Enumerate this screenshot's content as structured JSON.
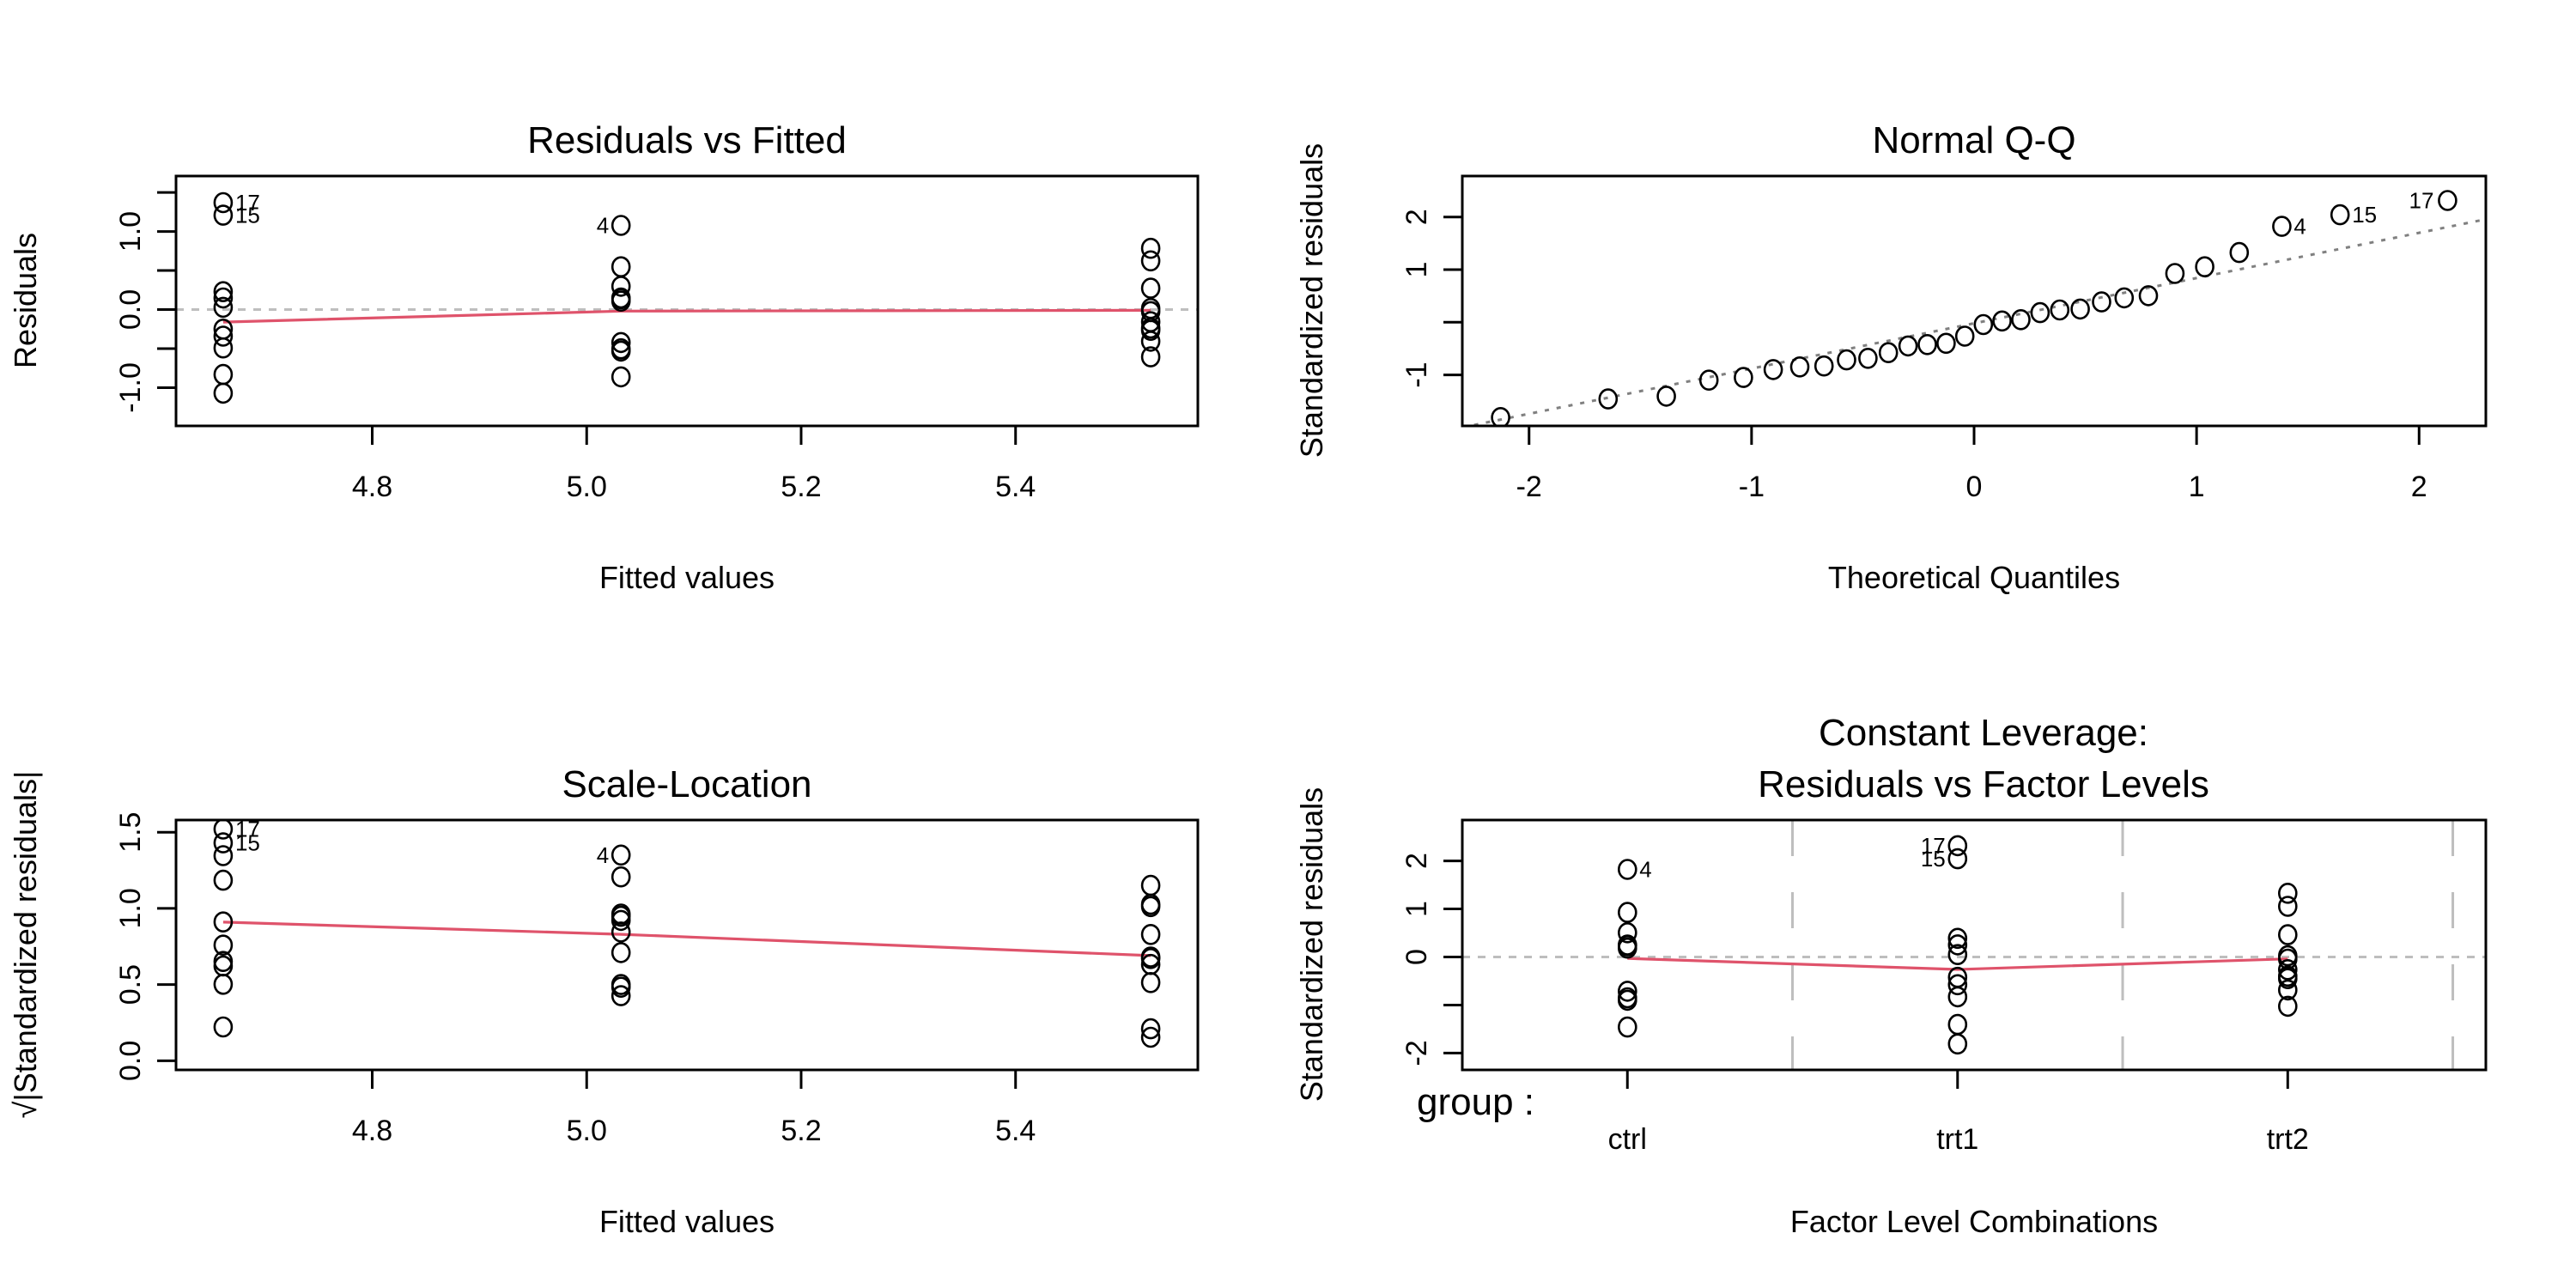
{
  "chart_data": [
    {
      "id": "residuals-vs-fitted",
      "type": "scatter",
      "title": "Residuals vs Fitted",
      "xlabel": "Fitted values",
      "ylabel": "Residuals",
      "xlim": [
        4.617,
        5.57
      ],
      "ylim": [
        -1.49,
        1.71
      ],
      "xticks": [
        4.8,
        5.0,
        5.2,
        5.4
      ],
      "xticklabels": [
        "4.8",
        "5.0",
        "5.2",
        "5.4"
      ],
      "yticks": [
        -1.0,
        -0.5,
        0.0,
        0.5,
        1.0,
        1.5
      ],
      "yticklabels": [
        "-1.0",
        "",
        "0.0",
        "",
        "1.0",
        ""
      ],
      "reference_line": {
        "y": 0,
        "style": "dotted",
        "color": "#BEBEBE"
      },
      "smooth_line": {
        "color": "#DF536B",
        "x": [
          4.661,
          5.032,
          5.526
        ],
        "y": [
          -0.16,
          -0.02,
          -0.01
        ]
      },
      "points": {
        "x": [
          5.032,
          5.032,
          5.032,
          5.032,
          5.032,
          5.032,
          5.032,
          5.032,
          5.032,
          5.032,
          4.661,
          4.661,
          4.661,
          4.661,
          4.661,
          4.661,
          4.661,
          4.661,
          4.661,
          4.661,
          5.526,
          5.526,
          5.526,
          5.526,
          5.526,
          5.526,
          5.526,
          5.526,
          5.526,
          5.526
        ],
        "y": [
          -0.862,
          0.548,
          0.148,
          1.078,
          -0.532,
          -0.422,
          0.138,
          -0.502,
          0.298,
          0.108,
          0.149,
          -0.491,
          -0.251,
          -1.071,
          1.209,
          -0.831,
          1.369,
          0.229,
          -0.341,
          0.029,
          0.784,
          -0.406,
          0.014,
          -0.026,
          -0.156,
          -0.236,
          -0.606,
          0.624,
          0.274,
          -0.266
        ]
      },
      "labeled_points": [
        {
          "label": "17",
          "index": 16
        },
        {
          "label": "15",
          "index": 14
        },
        {
          "label": "4",
          "index": 3
        }
      ]
    },
    {
      "id": "normal-qq",
      "type": "scatter",
      "title": "Normal Q-Q",
      "xlabel": "Theoretical Quantiles",
      "ylabel": "Standardized residuals",
      "xlim": [
        -2.3,
        2.3
      ],
      "ylim": [
        -1.97,
        2.78
      ],
      "xticks": [
        -2,
        -1,
        0,
        1,
        2
      ],
      "xticklabels": [
        "-2",
        "-1",
        "0",
        "1",
        "2"
      ],
      "yticks": [
        -1,
        0,
        1,
        2
      ],
      "yticklabels": [
        "-1",
        "",
        "1",
        "2"
      ],
      "qq_reference_line": {
        "color": "#808080",
        "style": "dotted",
        "slope": 0.86,
        "intercept": -0.02
      },
      "sorted_std_residuals": [
        -1.811,
        -1.458,
        -1.405,
        -1.1,
        -1.049,
        -0.9,
        -0.849,
        -0.83,
        -0.714,
        -0.686,
        -0.577,
        -0.45,
        -0.424,
        -0.399,
        -0.264,
        -0.044,
        0.024,
        0.049,
        0.183,
        0.233,
        0.252,
        0.387,
        0.463,
        0.504,
        0.927,
        1.055,
        1.326,
        1.823,
        2.044,
        2.315
      ],
      "labeled_points": [
        {
          "label": "4",
          "rank": 28
        },
        {
          "label": "15",
          "rank": 29
        },
        {
          "label": "17",
          "rank": 30
        }
      ]
    },
    {
      "id": "scale-location",
      "type": "scatter",
      "title": "Scale-Location",
      "xlabel": "Fitted values",
      "ylabel": "√|Standardized residuals|",
      "xlim": [
        4.617,
        5.57
      ],
      "ylim": [
        -0.06,
        1.58
      ],
      "xticks": [
        4.8,
        5.0,
        5.2,
        5.4
      ],
      "xticklabels": [
        "4.8",
        "5.0",
        "5.2",
        "5.4"
      ],
      "yticks": [
        0.0,
        0.5,
        1.0,
        1.5
      ],
      "yticklabels": [
        "0.0",
        "0.5",
        "1.0",
        "1.5"
      ],
      "smooth_line": {
        "color": "#DF536B",
        "x": [
          4.661,
          5.032,
          5.526
        ],
        "y": [
          0.91,
          0.83,
          0.69
        ]
      },
      "points": {
        "x": [
          5.032,
          5.032,
          5.032,
          5.032,
          5.032,
          5.032,
          5.032,
          5.032,
          5.032,
          5.032,
          4.661,
          4.661,
          4.661,
          4.661,
          4.661,
          4.661,
          4.661,
          4.661,
          4.661,
          4.661,
          5.526,
          5.526,
          5.526,
          5.526,
          5.526,
          5.526,
          5.526,
          5.526,
          5.526,
          5.526
        ],
        "y": [
          1.207,
          0.963,
          0.5,
          1.35,
          0.948,
          0.845,
          0.483,
          0.921,
          0.71,
          0.427,
          0.502,
          0.911,
          0.652,
          1.346,
          1.43,
          1.185,
          1.521,
          0.622,
          0.759,
          0.222,
          1.151,
          0.829,
          0.154,
          0.21,
          0.513,
          0.632,
          1.012,
          1.027,
          0.681,
          0.671
        ]
      },
      "labeled_points": [
        {
          "label": "17",
          "index": 16
        },
        {
          "label": "15",
          "index": 14
        },
        {
          "label": "4",
          "index": 3
        }
      ]
    },
    {
      "id": "residuals-vs-factor-levels",
      "type": "scatter",
      "title": "Constant Leverage:",
      "subtitle": "Residuals vs Factor Levels",
      "xlabel": "Factor Level Combinations",
      "ylabel": "Standardized residuals",
      "factor_name": "group :",
      "categories": [
        "ctrl",
        "trt1",
        "trt2"
      ],
      "xlim": [
        0.5,
        3.6
      ],
      "ylim": [
        -2.35,
        2.85
      ],
      "yticks": [
        -2,
        -1,
        0,
        1,
        2
      ],
      "yticklabels": [
        "-2",
        "",
        "0",
        "1",
        "2"
      ],
      "reference_line": {
        "y": 0,
        "style": "dotted",
        "color": "#BEBEBE"
      },
      "smooth_line": {
        "color": "#DF536B",
        "x": [
          1,
          2,
          3
        ],
        "y": [
          -0.03,
          -0.26,
          -0.04
        ]
      },
      "points": {
        "x": [
          1,
          1,
          1,
          1,
          1,
          1,
          1,
          1,
          1,
          1,
          2,
          2,
          2,
          2,
          2,
          2,
          2,
          2,
          2,
          2,
          3,
          3,
          3,
          3,
          3,
          3,
          3,
          3,
          3,
          3
        ],
        "y": [
          -1.458,
          0.927,
          0.25,
          1.823,
          -0.9,
          -0.714,
          0.233,
          -0.849,
          0.504,
          0.183,
          0.252,
          -0.83,
          -0.424,
          -1.811,
          2.044,
          -1.405,
          2.315,
          0.387,
          -0.577,
          0.049,
          1.326,
          -0.686,
          0.024,
          -0.044,
          -0.264,
          -0.399,
          -1.025,
          1.055,
          0.463,
          -0.45
        ]
      },
      "labeled_points": [
        {
          "label": "4",
          "index": 3
        },
        {
          "label": "17",
          "index": 16
        },
        {
          "label": "15",
          "index": 14
        }
      ]
    }
  ]
}
